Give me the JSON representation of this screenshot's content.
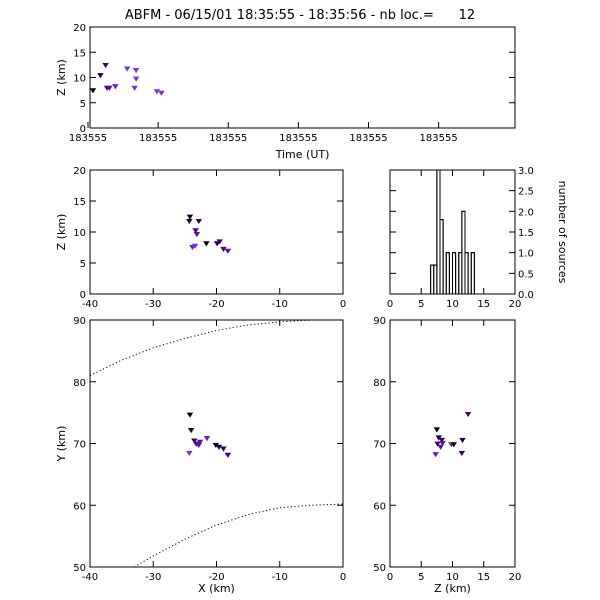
{
  "title": "ABFM - 06/15/01 18:35:55 - 18:35:56 - nb loc.=      12",
  "colors": {
    "background": "#ffffff",
    "axes": "#000000",
    "series": [
      "#000000",
      "#1a0033",
      "#3a0066",
      "#4a0080",
      "#5a10a0",
      "#6a20c0",
      "#7a30e0"
    ]
  },
  "chart_data": [
    {
      "id": "time-height",
      "type": "scatter",
      "xlabel": "Time (UT)",
      "ylabel": "Z (km)",
      "ylim": [
        0,
        20
      ],
      "yticks": [
        0,
        5,
        10,
        15,
        20
      ],
      "xtick_labels": [
        "183555",
        "183555",
        "183555",
        "183555",
        "183555",
        "183555"
      ],
      "points_time_fraction": [
        0.02,
        0.07,
        0.105,
        0.115,
        0.13,
        0.17,
        0.25,
        0.3,
        0.31,
        0.31,
        0.45,
        0.48
      ],
      "points_z": [
        7.5,
        10.5,
        12.5,
        8.0,
        8.0,
        8.3,
        11.8,
        8.0,
        9.8,
        11.5,
        7.3,
        7.0
      ]
    },
    {
      "id": "x-z",
      "type": "scatter",
      "xlabel": "",
      "ylabel": "Z (km)",
      "xlim": [
        -40,
        0
      ],
      "ylim": [
        0,
        20
      ],
      "xticks": [
        -40,
        -30,
        -20,
        -10,
        0
      ],
      "yticks": [
        0,
        5,
        10,
        15,
        20
      ],
      "points": [
        [
          -24.2,
          12.5
        ],
        [
          -24.3,
          11.8
        ],
        [
          -22.8,
          11.8
        ],
        [
          -23.3,
          10.3
        ],
        [
          -23.1,
          9.7
        ],
        [
          -23.8,
          7.6
        ],
        [
          -23.4,
          7.8
        ],
        [
          -21.6,
          8.2
        ],
        [
          -19.9,
          8.2
        ],
        [
          -19.5,
          8.5
        ],
        [
          -18.9,
          7.3
        ],
        [
          -18.2,
          7.0
        ]
      ]
    },
    {
      "id": "z-histogram",
      "type": "histogram",
      "xlabel": "",
      "ylabel": "number of sources",
      "xlim": [
        0,
        20
      ],
      "ylim": [
        0,
        3
      ],
      "xticks": [
        0,
        5,
        10,
        15,
        20
      ],
      "yticks": [
        0.0,
        0.5,
        1.0,
        1.5,
        2.0,
        2.5,
        3.0
      ],
      "bin_width": 0.5,
      "bins": [
        {
          "x": 6.5,
          "count": 0.7
        },
        {
          "x": 7.0,
          "count": 0.7
        },
        {
          "x": 7.5,
          "count": 3.0
        },
        {
          "x": 8.0,
          "count": 1.8
        },
        {
          "x": 8.5,
          "count": 0.0
        },
        {
          "x": 9.0,
          "count": 1.0
        },
        {
          "x": 9.5,
          "count": 0.0
        },
        {
          "x": 10.0,
          "count": 1.0
        },
        {
          "x": 10.5,
          "count": 0.0
        },
        {
          "x": 11.0,
          "count": 1.0
        },
        {
          "x": 11.5,
          "count": 2.0
        },
        {
          "x": 12.0,
          "count": 1.0
        },
        {
          "x": 12.5,
          "count": 0.0
        },
        {
          "x": 13.0,
          "count": 1.0
        }
      ],
      "baseline": 0.0
    },
    {
      "id": "x-y",
      "type": "scatter",
      "xlabel": "X (km)",
      "ylabel": "Y (km)",
      "xlim": [
        -40,
        0
      ],
      "ylim": [
        50,
        90
      ],
      "xticks": [
        -40,
        -30,
        -20,
        -10,
        0
      ],
      "yticks": [
        50,
        60,
        70,
        80,
        90
      ],
      "points": [
        [
          -24.2,
          74.7
        ],
        [
          -24.0,
          72.2
        ],
        [
          -23.5,
          70.5
        ],
        [
          -23.2,
          70.0
        ],
        [
          -22.8,
          69.8
        ],
        [
          -21.5,
          70.9
        ],
        [
          -24.3,
          68.5
        ],
        [
          -20.1,
          69.8
        ],
        [
          -19.6,
          69.5
        ],
        [
          -18.9,
          69.2
        ],
        [
          -18.2,
          68.2
        ],
        [
          -22.6,
          70.3
        ]
      ],
      "dotted_curves": [
        [
          [
            -40,
            81.0
          ],
          [
            -35,
            83.5
          ],
          [
            -30,
            85.5
          ],
          [
            -25,
            87.0
          ],
          [
            -20,
            88.3
          ],
          [
            -15,
            89.2
          ],
          [
            -10,
            89.7
          ],
          [
            -5,
            90.0
          ],
          [
            -3,
            90.0
          ]
        ],
        [
          [
            -33,
            50.0
          ],
          [
            -30,
            51.8
          ],
          [
            -25,
            54.5
          ],
          [
            -20,
            56.8
          ],
          [
            -15,
            58.5
          ],
          [
            -10,
            59.6
          ],
          [
            -5,
            60.0
          ],
          [
            0,
            60.2
          ]
        ]
      ]
    },
    {
      "id": "z-y",
      "type": "scatter",
      "xlabel": "Z (km)",
      "ylabel": "",
      "xlim": [
        0,
        20
      ],
      "ylim": [
        50,
        90
      ],
      "xticks": [
        0,
        5,
        10,
        15,
        20
      ],
      "yticks": [
        50,
        60,
        70,
        80,
        90
      ],
      "points": [
        [
          7.5,
          72.3
        ],
        [
          7.8,
          71.0
        ],
        [
          8.3,
          70.6
        ],
        [
          7.6,
          70.0
        ],
        [
          8.1,
          69.5
        ],
        [
          7.3,
          68.3
        ],
        [
          9.8,
          69.9
        ],
        [
          10.2,
          69.9
        ],
        [
          11.6,
          70.6
        ],
        [
          11.5,
          68.5
        ],
        [
          12.5,
          74.8
        ],
        [
          8.4,
          70.1
        ]
      ]
    }
  ]
}
